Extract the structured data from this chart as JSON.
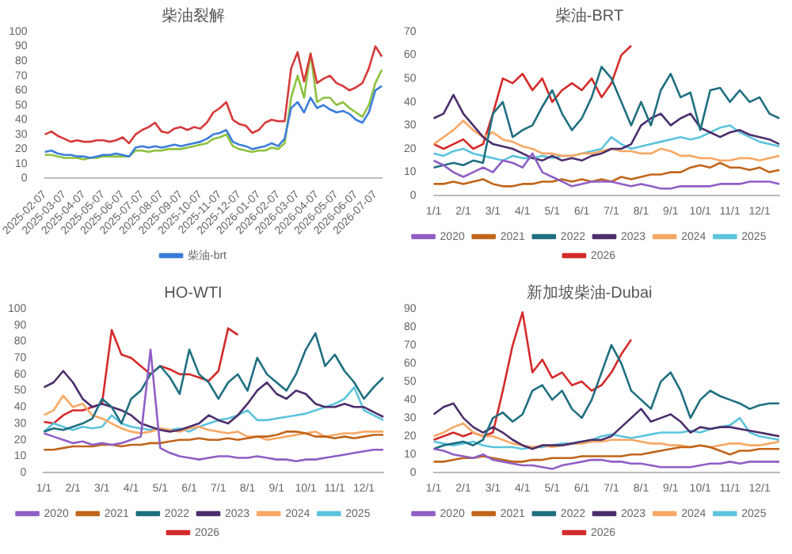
{
  "chart_data": [
    {
      "type": "line",
      "title": "柴油裂解",
      "categories": [
        "2025-02-07",
        null,
        null,
        "2025-03-07",
        null,
        null,
        "2025-04-07",
        null,
        null,
        "2025-05-07",
        null,
        null,
        "2025-06-07",
        null,
        null,
        "2025-07-07",
        null,
        null,
        "2025-08-07",
        null,
        null,
        "2025-09-07",
        null,
        null,
        "2025-10-07",
        null,
        null,
        "2025-11-07",
        null,
        null,
        "2025-12-07",
        null,
        null,
        "2026-01-07",
        null,
        null,
        "2026-02-07",
        null,
        null,
        "2026-03-07",
        null,
        null,
        "2026-04-07",
        null,
        null,
        "2026-05-07",
        null,
        null,
        "2026-06-07",
        null,
        null,
        "2026-07-07",
        null
      ],
      "ylim": [
        0,
        100
      ],
      "yticks": [
        0,
        10,
        20,
        30,
        40,
        50,
        60,
        70,
        80,
        90,
        100
      ],
      "grid": false,
      "legend": "bottom",
      "marker": "none",
      "line_style": "solid",
      "series": [
        {
          "name": "柴油-brt",
          "color": "#3c7dd9",
          "values": [
            18,
            19,
            17,
            16,
            16,
            15,
            15,
            14,
            15,
            16,
            16,
            17,
            16,
            15,
            21,
            22,
            21,
            22,
            21,
            22,
            23,
            22,
            23,
            24,
            25,
            27,
            30,
            31,
            33,
            25,
            23,
            22,
            20,
            21,
            22,
            24,
            22,
            27,
            48,
            52,
            45,
            55,
            48,
            50,
            47,
            45,
            46,
            44,
            40,
            38,
            45,
            60,
            63
          ]
        },
        {
          "color": "#d63a3a",
          "values": [
            30,
            32,
            29,
            27,
            25,
            26,
            25,
            25,
            26,
            26,
            25,
            26,
            28,
            24,
            30,
            33,
            35,
            38,
            32,
            31,
            34,
            35,
            33,
            35,
            34,
            38,
            45,
            48,
            52,
            40,
            37,
            36,
            31,
            33,
            38,
            40,
            39,
            39,
            75,
            86,
            66,
            85,
            65,
            68,
            70,
            65,
            63,
            60,
            62,
            65,
            75,
            90,
            83
          ]
        },
        {
          "color": "#8dc13f",
          "values": [
            16,
            16,
            15,
            14,
            14,
            14,
            13,
            14,
            14,
            15,
            15,
            15,
            15,
            15,
            19,
            19,
            18,
            19,
            19,
            20,
            20,
            20,
            21,
            22,
            23,
            24,
            27,
            28,
            30,
            22,
            20,
            19,
            18,
            19,
            19,
            21,
            20,
            24,
            55,
            70,
            55,
            85,
            52,
            55,
            55,
            50,
            52,
            48,
            45,
            42,
            50,
            65,
            74
          ]
        }
      ]
    },
    {
      "type": "line",
      "title": "柴油-BRT",
      "categories": [
        "1/1",
        null,
        null,
        "2/1",
        null,
        null,
        "3/1",
        null,
        null,
        "4/1",
        null,
        null,
        "5/1",
        null,
        null,
        "6/1",
        null,
        null,
        "7/1",
        null,
        null,
        "8/1",
        null,
        null,
        "9/1",
        null,
        null,
        "10/1",
        null,
        null,
        "11/1",
        null,
        null,
        "12/1",
        null,
        null
      ],
      "ylim": [
        0,
        70
      ],
      "yticks": [
        0,
        10,
        20,
        30,
        40,
        50,
        60,
        70
      ],
      "grid": false,
      "legend": "bottom",
      "marker": "none",
      "line_style": "solid",
      "series": [
        {
          "name": "2020",
          "color": "#8e5fc4",
          "values": [
            15,
            13,
            10,
            8,
            10,
            12,
            10,
            15,
            14,
            12,
            18,
            10,
            8,
            6,
            4,
            5,
            6,
            6,
            6,
            5,
            4,
            5,
            4,
            3,
            3,
            4,
            4,
            4,
            4,
            5,
            5,
            5,
            6,
            6,
            6,
            5
          ]
        },
        {
          "name": "2021",
          "color": "#c0651a",
          "values": [
            5,
            5,
            6,
            5,
            6,
            7,
            5,
            4,
            4,
            5,
            5,
            6,
            6,
            7,
            6,
            7,
            6,
            7,
            6,
            8,
            7,
            8,
            9,
            9,
            10,
            10,
            12,
            13,
            12,
            14,
            12,
            12,
            11,
            12,
            10,
            11
          ]
        },
        {
          "name": "2022",
          "color": "#1f6f80",
          "values": [
            12,
            13,
            14,
            13,
            15,
            14,
            35,
            40,
            25,
            28,
            30,
            38,
            45,
            35,
            28,
            33,
            42,
            55,
            50,
            40,
            30,
            40,
            30,
            45,
            52,
            42,
            44,
            28,
            45,
            46,
            40,
            45,
            40,
            42,
            35,
            33
          ]
        },
        {
          "name": "2023",
          "color": "#4b2e6b",
          "values": [
            33,
            35,
            43,
            35,
            30,
            25,
            22,
            21,
            20,
            18,
            16,
            15,
            17,
            15,
            16,
            15,
            17,
            18,
            20,
            20,
            22,
            30,
            33,
            35,
            30,
            33,
            35,
            29,
            27,
            25,
            27,
            28,
            26,
            25,
            24,
            22
          ]
        },
        {
          "name": "2024",
          "color": "#f8a865",
          "values": [
            22,
            25,
            28,
            32,
            28,
            25,
            27,
            24,
            23,
            21,
            20,
            18,
            18,
            17,
            17,
            18,
            18,
            19,
            20,
            19,
            19,
            18,
            18,
            20,
            19,
            17,
            17,
            16,
            16,
            15,
            15,
            16,
            16,
            15,
            16,
            17
          ]
        },
        {
          "name": "2025",
          "color": "#5cc4dc",
          "values": [
            18,
            17,
            19,
            20,
            18,
            17,
            16,
            15,
            17,
            16,
            16,
            17,
            16,
            17,
            17,
            18,
            19,
            20,
            25,
            22,
            20,
            21,
            22,
            23,
            24,
            25,
            24,
            25,
            27,
            29,
            30,
            27,
            25,
            23,
            22,
            21
          ]
        },
        {
          "name": "2026",
          "color": "#d42a2a",
          "values": [
            22,
            20,
            22,
            24,
            20,
            22,
            35,
            50,
            48,
            52,
            45,
            50,
            40,
            45,
            48,
            45,
            50,
            42,
            48,
            60,
            64,
            null,
            null,
            null,
            null,
            null,
            null,
            null,
            null,
            null,
            null,
            null,
            null,
            null,
            null,
            null
          ]
        }
      ]
    },
    {
      "type": "line",
      "title": "HO-WTI",
      "categories": [
        "1/1",
        null,
        null,
        "2/1",
        null,
        null,
        "3/1",
        null,
        null,
        "4/1",
        null,
        null,
        "5/1",
        null,
        null,
        "6/1",
        null,
        null,
        "7/1",
        null,
        null,
        "8/1",
        null,
        null,
        "9/1",
        null,
        null,
        "10/1",
        null,
        null,
        "11/1",
        null,
        null,
        "12/1",
        null,
        null
      ],
      "ylim": [
        0,
        100
      ],
      "yticks": [
        0,
        10,
        20,
        30,
        40,
        50,
        60,
        70,
        80,
        90,
        100
      ],
      "grid": false,
      "legend": "bottom",
      "marker": "none",
      "line_style": "solid",
      "series": [
        {
          "name": "2020",
          "color": "#8e5fc4",
          "values": [
            24,
            22,
            20,
            18,
            19,
            17,
            18,
            17,
            18,
            20,
            22,
            75,
            15,
            12,
            10,
            9,
            8,
            9,
            10,
            10,
            9,
            9,
            10,
            9,
            8,
            8,
            7,
            8,
            8,
            9,
            10,
            11,
            12,
            13,
            14,
            14
          ]
        },
        {
          "name": "2021",
          "color": "#c0651a",
          "values": [
            14,
            14,
            15,
            16,
            16,
            16,
            17,
            17,
            16,
            17,
            17,
            18,
            18,
            19,
            20,
            20,
            21,
            20,
            20,
            21,
            20,
            21,
            22,
            22,
            23,
            25,
            25,
            24,
            22,
            22,
            21,
            22,
            21,
            22,
            23,
            23
          ]
        },
        {
          "name": "2022",
          "color": "#1f6f80",
          "values": [
            25,
            27,
            26,
            28,
            30,
            33,
            45,
            40,
            30,
            45,
            50,
            60,
            65,
            58,
            48,
            75,
            60,
            55,
            45,
            55,
            60,
            50,
            70,
            60,
            55,
            50,
            60,
            75,
            85,
            65,
            72,
            62,
            55,
            45,
            52,
            58
          ]
        },
        {
          "name": "2023",
          "color": "#4b2e6b",
          "values": [
            52,
            55,
            62,
            55,
            45,
            40,
            42,
            40,
            38,
            35,
            30,
            28,
            26,
            25,
            26,
            28,
            30,
            35,
            32,
            30,
            35,
            42,
            50,
            55,
            48,
            45,
            50,
            48,
            42,
            40,
            40,
            42,
            40,
            40,
            37,
            34
          ]
        },
        {
          "name": "2024",
          "color": "#f8a865",
          "values": [
            35,
            38,
            47,
            40,
            42,
            35,
            33,
            30,
            27,
            25,
            24,
            25,
            27,
            26,
            25,
            27,
            28,
            26,
            25,
            24,
            25,
            22,
            22,
            20,
            21,
            22,
            23,
            24,
            25,
            22,
            23,
            24,
            24,
            25,
            25,
            25
          ]
        },
        {
          "name": "2025",
          "color": "#5cc4dc",
          "values": [
            25,
            30,
            28,
            26,
            28,
            27,
            28,
            35,
            30,
            28,
            27,
            26,
            27,
            26,
            27,
            25,
            28,
            30,
            32,
            33,
            35,
            38,
            32,
            32,
            33,
            34,
            35,
            36,
            38,
            40,
            42,
            45,
            52,
            38,
            35,
            32
          ]
        },
        {
          "name": "2026",
          "color": "#d42a2a",
          "values": [
            31,
            30,
            35,
            38,
            38,
            40,
            42,
            87,
            72,
            70,
            65,
            60,
            65,
            63,
            60,
            60,
            58,
            56,
            62,
            88,
            84,
            null,
            null,
            null,
            null,
            null,
            null,
            null,
            null,
            null,
            null,
            null,
            null,
            null,
            null,
            null
          ]
        }
      ]
    },
    {
      "type": "line",
      "title": "新加坡柴油-Dubai",
      "categories": [
        "1/1",
        null,
        null,
        "2/1",
        null,
        null,
        "3/1",
        null,
        null,
        "4/1",
        null,
        null,
        "5/1",
        null,
        null,
        "6/1",
        null,
        null,
        "7/1",
        null,
        null,
        "8/1",
        null,
        null,
        "9/1",
        null,
        null,
        "10/1",
        null,
        null,
        "11/1",
        null,
        null,
        "12/1",
        null,
        null
      ],
      "ylim": [
        0,
        90
      ],
      "yticks": [
        0,
        10,
        20,
        30,
        40,
        50,
        60,
        70,
        80,
        90
      ],
      "grid": false,
      "legend": "bottom",
      "marker": "none",
      "line_style": "solid",
      "series": [
        {
          "name": "2020",
          "color": "#8e5fc4",
          "values": [
            13,
            12,
            10,
            9,
            8,
            10,
            7,
            6,
            5,
            4,
            4,
            3,
            2,
            4,
            5,
            6,
            7,
            7,
            6,
            6,
            5,
            5,
            4,
            3,
            3,
            3,
            3,
            4,
            5,
            5,
            6,
            5,
            6,
            6,
            6,
            6
          ]
        },
        {
          "name": "2021",
          "color": "#c0651a",
          "values": [
            6,
            6,
            7,
            8,
            8,
            9,
            8,
            7,
            6,
            6,
            7,
            7,
            8,
            8,
            8,
            9,
            9,
            9,
            9,
            9,
            10,
            10,
            11,
            12,
            13,
            14,
            14,
            15,
            14,
            12,
            10,
            12,
            12,
            13,
            13,
            13
          ]
        },
        {
          "name": "2022",
          "color": "#1f6f80",
          "values": [
            13,
            15,
            16,
            17,
            15,
            18,
            30,
            33,
            28,
            32,
            45,
            48,
            40,
            45,
            35,
            30,
            40,
            55,
            70,
            60,
            45,
            40,
            35,
            50,
            55,
            45,
            30,
            40,
            45,
            42,
            40,
            38,
            35,
            37,
            38,
            38
          ]
        },
        {
          "name": "2023",
          "color": "#4b2e6b",
          "values": [
            32,
            36,
            38,
            30,
            25,
            22,
            25,
            22,
            18,
            15,
            13,
            15,
            15,
            15,
            16,
            17,
            18,
            18,
            20,
            25,
            30,
            35,
            28,
            30,
            32,
            28,
            22,
            25,
            24,
            25,
            25,
            24,
            23,
            22,
            21,
            20
          ]
        },
        {
          "name": "2024",
          "color": "#f8a865",
          "values": [
            20,
            22,
            25,
            27,
            22,
            20,
            20,
            18,
            16,
            15,
            14,
            15,
            14,
            15,
            16,
            16,
            17,
            17,
            18,
            18,
            18,
            17,
            16,
            16,
            15,
            15,
            14,
            15,
            14,
            15,
            16,
            16,
            15,
            15,
            16,
            17
          ]
        },
        {
          "name": "2025",
          "color": "#5cc4dc",
          "values": [
            17,
            16,
            15,
            16,
            17,
            15,
            14,
            14,
            14,
            13,
            14,
            14,
            15,
            16,
            16,
            17,
            18,
            20,
            21,
            20,
            19,
            20,
            21,
            22,
            22,
            22,
            23,
            22,
            24,
            25,
            26,
            30,
            22,
            20,
            19,
            18
          ]
        },
        {
          "name": "2026",
          "color": "#d42a2a",
          "values": [
            18,
            20,
            22,
            20,
            22,
            20,
            22,
            45,
            70,
            88,
            55,
            62,
            52,
            55,
            48,
            50,
            45,
            48,
            55,
            65,
            73,
            null,
            null,
            null,
            null,
            null,
            null,
            null,
            null,
            null,
            null,
            null,
            null,
            null,
            null,
            null
          ]
        }
      ]
    }
  ]
}
